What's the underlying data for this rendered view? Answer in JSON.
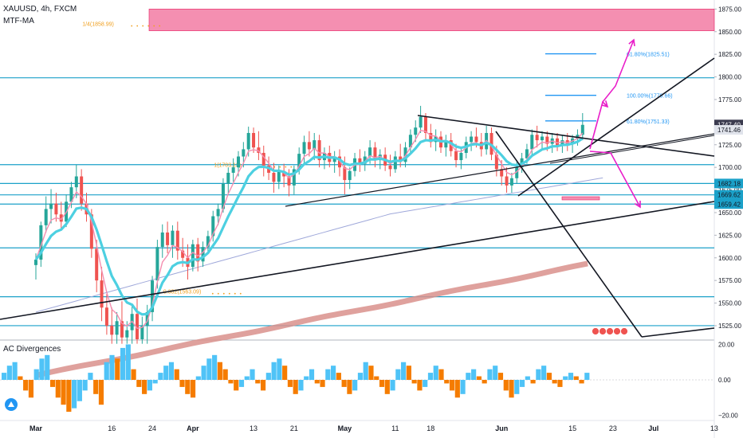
{
  "header": {
    "symbol_line": "XAUUSD, 4h, FXCM",
    "indicator_line": "MTF-MA",
    "pane2_title": "AC Divergences"
  },
  "colors": {
    "zone": "#f48fb1",
    "hline": "#1ba1c9",
    "fib": "#2196f3",
    "arrow": "#e91ec9",
    "trend": "#131722",
    "ma_fast": "#4dd0e1",
    "ma_pink": "#f48fb1",
    "ma_slow": "#9fa8da",
    "ma_long": "#d9908c",
    "bull": "#26a69a",
    "bear": "#ef5350",
    "ac_up": "#4fc3f7",
    "ac_down": "#f57c00"
  },
  "chart_data": {
    "type": "candlestick",
    "xaxis": {
      "tick_labels": [
        "Mar",
        "16",
        "24",
        "Apr",
        "13",
        "21",
        "May",
        "11",
        "18",
        "Jun",
        "15",
        "23",
        "Jul",
        "13"
      ],
      "tick_days": [
        0,
        15,
        23,
        31,
        43,
        51,
        61,
        71,
        78,
        92,
        106,
        114,
        122,
        134
      ]
    },
    "yaxis": {
      "tick_labels": [
        "1875.00",
        "1850.00",
        "1825.00",
        "1800.00",
        "1775.00",
        "1750.00",
        "1725.00",
        "1700.00",
        "1675.00",
        "1650.00",
        "1625.00",
        "1600.00",
        "1575.00",
        "1550.00",
        "1525.00"
      ],
      "range": [
        1510,
        1885
      ]
    },
    "price_labels": [
      {
        "text": "1747.40",
        "value": 1747.4,
        "bg": "#3b3b4f",
        "fg": "#ffffff"
      },
      {
        "text": "1741.46",
        "value": 1741.46,
        "bg": "#e0e3eb",
        "fg": "#131722"
      },
      {
        "text": "1682.18",
        "value": 1682.18,
        "bg": "#1ba1c9",
        "fg": "#131722"
      },
      {
        "text": "1669.62",
        "value": 1669.62,
        "bg": "#1ba1c9",
        "fg": "#131722"
      },
      {
        "text": "1659.42",
        "value": 1659.42,
        "bg": "#1ba1c9",
        "fg": "#131722"
      }
    ],
    "supply_zone": {
      "top": 1875,
      "bottom": 1851
    },
    "horizontal_levels": [
      1799,
      1703,
      1682.18,
      1669.62,
      1659.42,
      1611,
      1557,
      1525
    ],
    "fib_levels": [
      {
        "label": "61.80%(1825.51)",
        "value": 1825.51
      },
      {
        "label": "100.00%(1779.66)",
        "value": 1779.66
      },
      {
        "label": "61.80%(1751.33)",
        "value": 1751.33
      }
    ],
    "annotations": [
      {
        "text": "1/4(1858.99)",
        "value": 1858.99,
        "day": 12
      },
      {
        "text": "1(1703.13)",
        "value": 1703.13,
        "day": 38
      },
      {
        "text": "0.382(1563.09)",
        "value": 1563.09,
        "day": 28
      }
    ],
    "candles": [
      {
        "day": 0,
        "o": 1592,
        "h": 1605,
        "l": 1576,
        "c": 1598
      },
      {
        "day": 1,
        "o": 1598,
        "h": 1640,
        "l": 1590,
        "c": 1636
      },
      {
        "day": 2,
        "o": 1636,
        "h": 1668,
        "l": 1628,
        "c": 1654
      },
      {
        "day": 3,
        "o": 1654,
        "h": 1676,
        "l": 1638,
        "c": 1660
      },
      {
        "day": 4,
        "o": 1660,
        "h": 1672,
        "l": 1640,
        "c": 1648
      },
      {
        "day": 5,
        "o": 1648,
        "h": 1662,
        "l": 1630,
        "c": 1640
      },
      {
        "day": 6,
        "o": 1640,
        "h": 1670,
        "l": 1634,
        "c": 1662
      },
      {
        "day": 7,
        "o": 1662,
        "h": 1684,
        "l": 1655,
        "c": 1678
      },
      {
        "day": 8,
        "o": 1678,
        "h": 1703,
        "l": 1666,
        "c": 1690
      },
      {
        "day": 9,
        "o": 1690,
        "h": 1698,
        "l": 1652,
        "c": 1660
      },
      {
        "day": 10,
        "o": 1660,
        "h": 1672,
        "l": 1640,
        "c": 1648
      },
      {
        "day": 11,
        "o": 1648,
        "h": 1654,
        "l": 1600,
        "c": 1610
      },
      {
        "day": 12,
        "o": 1610,
        "h": 1620,
        "l": 1562,
        "c": 1575
      },
      {
        "day": 13,
        "o": 1575,
        "h": 1590,
        "l": 1530,
        "c": 1545
      },
      {
        "day": 14,
        "o": 1545,
        "h": 1560,
        "l": 1515,
        "c": 1525
      },
      {
        "day": 15,
        "o": 1525,
        "h": 1545,
        "l": 1505,
        "c": 1515
      },
      {
        "day": 16,
        "o": 1515,
        "h": 1540,
        "l": 1505,
        "c": 1530
      },
      {
        "day": 17,
        "o": 1530,
        "h": 1552,
        "l": 1505,
        "c": 1512
      },
      {
        "day": 18,
        "o": 1512,
        "h": 1530,
        "l": 1505,
        "c": 1520
      },
      {
        "day": 19,
        "o": 1520,
        "h": 1548,
        "l": 1505,
        "c": 1538
      },
      {
        "day": 20,
        "o": 1538,
        "h": 1555,
        "l": 1505,
        "c": 1510
      },
      {
        "day": 21,
        "o": 1510,
        "h": 1535,
        "l": 1505,
        "c": 1525
      },
      {
        "day": 22,
        "o": 1525,
        "h": 1548,
        "l": 1505,
        "c": 1540
      },
      {
        "day": 23,
        "o": 1540,
        "h": 1580,
        "l": 1530,
        "c": 1575
      },
      {
        "day": 24,
        "o": 1575,
        "h": 1620,
        "l": 1566,
        "c": 1612
      },
      {
        "day": 25,
        "o": 1612,
        "h": 1637,
        "l": 1600,
        "c": 1628
      },
      {
        "day": 26,
        "o": 1628,
        "h": 1640,
        "l": 1605,
        "c": 1614
      },
      {
        "day": 27,
        "o": 1614,
        "h": 1636,
        "l": 1600,
        "c": 1630
      },
      {
        "day": 28,
        "o": 1630,
        "h": 1640,
        "l": 1598,
        "c": 1608
      },
      {
        "day": 29,
        "o": 1608,
        "h": 1622,
        "l": 1590,
        "c": 1600
      },
      {
        "day": 30,
        "o": 1600,
        "h": 1615,
        "l": 1576,
        "c": 1590
      },
      {
        "day": 31,
        "o": 1590,
        "h": 1620,
        "l": 1585,
        "c": 1615
      },
      {
        "day": 32,
        "o": 1615,
        "h": 1622,
        "l": 1585,
        "c": 1596
      },
      {
        "day": 33,
        "o": 1596,
        "h": 1618,
        "l": 1590,
        "c": 1612
      },
      {
        "day": 34,
        "o": 1612,
        "h": 1630,
        "l": 1605,
        "c": 1624
      },
      {
        "day": 35,
        "o": 1624,
        "h": 1652,
        "l": 1618,
        "c": 1646
      },
      {
        "day": 36,
        "o": 1646,
        "h": 1660,
        "l": 1636,
        "c": 1654
      },
      {
        "day": 37,
        "o": 1654,
        "h": 1688,
        "l": 1650,
        "c": 1682
      },
      {
        "day": 38,
        "o": 1682,
        "h": 1700,
        "l": 1670,
        "c": 1694
      },
      {
        "day": 39,
        "o": 1694,
        "h": 1710,
        "l": 1684,
        "c": 1700
      },
      {
        "day": 40,
        "o": 1700,
        "h": 1718,
        "l": 1690,
        "c": 1712
      },
      {
        "day": 41,
        "o": 1712,
        "h": 1728,
        "l": 1700,
        "c": 1720
      },
      {
        "day": 42,
        "o": 1720,
        "h": 1745,
        "l": 1712,
        "c": 1738
      },
      {
        "day": 43,
        "o": 1738,
        "h": 1744,
        "l": 1716,
        "c": 1722
      },
      {
        "day": 44,
        "o": 1722,
        "h": 1740,
        "l": 1708,
        "c": 1716
      },
      {
        "day": 45,
        "o": 1716,
        "h": 1724,
        "l": 1690,
        "c": 1702
      },
      {
        "day": 46,
        "o": 1702,
        "h": 1712,
        "l": 1686,
        "c": 1694
      },
      {
        "day": 47,
        "o": 1694,
        "h": 1705,
        "l": 1672,
        "c": 1684
      },
      {
        "day": 48,
        "o": 1684,
        "h": 1702,
        "l": 1676,
        "c": 1696
      },
      {
        "day": 49,
        "o": 1696,
        "h": 1704,
        "l": 1678,
        "c": 1690
      },
      {
        "day": 50,
        "o": 1690,
        "h": 1698,
        "l": 1668,
        "c": 1680
      },
      {
        "day": 51,
        "o": 1680,
        "h": 1702,
        "l": 1670,
        "c": 1698
      },
      {
        "day": 52,
        "o": 1698,
        "h": 1722,
        "l": 1692,
        "c": 1715
      },
      {
        "day": 53,
        "o": 1715,
        "h": 1735,
        "l": 1705,
        "c": 1728
      },
      {
        "day": 54,
        "o": 1728,
        "h": 1740,
        "l": 1712,
        "c": 1720
      },
      {
        "day": 55,
        "o": 1720,
        "h": 1738,
        "l": 1708,
        "c": 1730
      },
      {
        "day": 56,
        "o": 1730,
        "h": 1736,
        "l": 1700,
        "c": 1708
      },
      {
        "day": 57,
        "o": 1708,
        "h": 1722,
        "l": 1698,
        "c": 1716
      },
      {
        "day": 58,
        "o": 1716,
        "h": 1724,
        "l": 1700,
        "c": 1706
      },
      {
        "day": 59,
        "o": 1706,
        "h": 1718,
        "l": 1694,
        "c": 1712
      },
      {
        "day": 60,
        "o": 1712,
        "h": 1720,
        "l": 1690,
        "c": 1700
      },
      {
        "day": 61,
        "o": 1700,
        "h": 1712,
        "l": 1670,
        "c": 1686
      },
      {
        "day": 62,
        "o": 1686,
        "h": 1700,
        "l": 1676,
        "c": 1696
      },
      {
        "day": 63,
        "o": 1696,
        "h": 1716,
        "l": 1690,
        "c": 1710
      },
      {
        "day": 64,
        "o": 1710,
        "h": 1720,
        "l": 1695,
        "c": 1704
      },
      {
        "day": 65,
        "o": 1704,
        "h": 1718,
        "l": 1696,
        "c": 1712
      },
      {
        "day": 66,
        "o": 1712,
        "h": 1730,
        "l": 1704,
        "c": 1722
      },
      {
        "day": 67,
        "o": 1722,
        "h": 1728,
        "l": 1700,
        "c": 1708
      },
      {
        "day": 68,
        "o": 1708,
        "h": 1720,
        "l": 1698,
        "c": 1714
      },
      {
        "day": 69,
        "o": 1714,
        "h": 1722,
        "l": 1696,
        "c": 1702
      },
      {
        "day": 70,
        "o": 1702,
        "h": 1714,
        "l": 1690,
        "c": 1698
      },
      {
        "day": 71,
        "o": 1698,
        "h": 1718,
        "l": 1694,
        "c": 1712
      },
      {
        "day": 72,
        "o": 1712,
        "h": 1726,
        "l": 1700,
        "c": 1706
      },
      {
        "day": 73,
        "o": 1706,
        "h": 1728,
        "l": 1700,
        "c": 1722
      },
      {
        "day": 74,
        "o": 1722,
        "h": 1742,
        "l": 1716,
        "c": 1736
      },
      {
        "day": 75,
        "o": 1736,
        "h": 1752,
        "l": 1728,
        "c": 1744
      },
      {
        "day": 76,
        "o": 1744,
        "h": 1768,
        "l": 1738,
        "c": 1756
      },
      {
        "day": 77,
        "o": 1756,
        "h": 1760,
        "l": 1730,
        "c": 1738
      },
      {
        "day": 78,
        "o": 1738,
        "h": 1748,
        "l": 1722,
        "c": 1728
      },
      {
        "day": 79,
        "o": 1728,
        "h": 1742,
        "l": 1718,
        "c": 1734
      },
      {
        "day": 80,
        "o": 1734,
        "h": 1740,
        "l": 1716,
        "c": 1722
      },
      {
        "day": 81,
        "o": 1722,
        "h": 1736,
        "l": 1712,
        "c": 1730
      },
      {
        "day": 82,
        "o": 1730,
        "h": 1738,
        "l": 1712,
        "c": 1718
      },
      {
        "day": 83,
        "o": 1718,
        "h": 1726,
        "l": 1700,
        "c": 1708
      },
      {
        "day": 84,
        "o": 1708,
        "h": 1722,
        "l": 1698,
        "c": 1716
      },
      {
        "day": 85,
        "o": 1716,
        "h": 1734,
        "l": 1710,
        "c": 1728
      },
      {
        "day": 86,
        "o": 1728,
        "h": 1740,
        "l": 1718,
        "c": 1734
      },
      {
        "day": 87,
        "o": 1734,
        "h": 1744,
        "l": 1722,
        "c": 1728
      },
      {
        "day": 88,
        "o": 1728,
        "h": 1738,
        "l": 1712,
        "c": 1720
      },
      {
        "day": 89,
        "o": 1720,
        "h": 1746,
        "l": 1714,
        "c": 1738
      },
      {
        "day": 90,
        "o": 1738,
        "h": 1744,
        "l": 1708,
        "c": 1714
      },
      {
        "day": 91,
        "o": 1714,
        "h": 1724,
        "l": 1690,
        "c": 1698
      },
      {
        "day": 92,
        "o": 1698,
        "h": 1708,
        "l": 1680,
        "c": 1690
      },
      {
        "day": 93,
        "o": 1690,
        "h": 1700,
        "l": 1672,
        "c": 1680
      },
      {
        "day": 94,
        "o": 1680,
        "h": 1694,
        "l": 1672,
        "c": 1688
      },
      {
        "day": 95,
        "o": 1688,
        "h": 1708,
        "l": 1682,
        "c": 1700
      },
      {
        "day": 96,
        "o": 1700,
        "h": 1716,
        "l": 1694,
        "c": 1710
      },
      {
        "day": 97,
        "o": 1710,
        "h": 1726,
        "l": 1704,
        "c": 1720
      },
      {
        "day": 98,
        "o": 1720,
        "h": 1742,
        "l": 1714,
        "c": 1736
      },
      {
        "day": 99,
        "o": 1736,
        "h": 1746,
        "l": 1722,
        "c": 1730
      },
      {
        "day": 100,
        "o": 1730,
        "h": 1740,
        "l": 1720,
        "c": 1734
      },
      {
        "day": 101,
        "o": 1734,
        "h": 1740,
        "l": 1718,
        "c": 1726
      },
      {
        "day": 102,
        "o": 1726,
        "h": 1738,
        "l": 1716,
        "c": 1732
      },
      {
        "day": 103,
        "o": 1732,
        "h": 1738,
        "l": 1718,
        "c": 1724
      },
      {
        "day": 104,
        "o": 1724,
        "h": 1736,
        "l": 1716,
        "c": 1730
      },
      {
        "day": 105,
        "o": 1730,
        "h": 1738,
        "l": 1718,
        "c": 1726
      },
      {
        "day": 106,
        "o": 1726,
        "h": 1736,
        "l": 1716,
        "c": 1732
      },
      {
        "day": 107,
        "o": 1732,
        "h": 1742,
        "l": 1724,
        "c": 1736
      },
      {
        "day": 108,
        "o": 1736,
        "h": 1760,
        "l": 1730,
        "c": 1747
      }
    ],
    "ac_histogram": [
      4,
      8,
      10,
      2,
      -6,
      -10,
      6,
      12,
      14,
      -4,
      -10,
      -14,
      -18,
      -16,
      -12,
      -6,
      4,
      -8,
      -14,
      10,
      14,
      12,
      18,
      20,
      6,
      -4,
      -8,
      -6,
      -2,
      4,
      8,
      10,
      6,
      -4,
      -8,
      -10,
      2,
      8,
      12,
      14,
      10,
      6,
      -2,
      -6,
      -4,
      2,
      6,
      -2,
      -6,
      4,
      10,
      12,
      8,
      -4,
      -8,
      -6,
      2,
      6,
      -2,
      -4,
      6,
      8,
      4,
      -4,
      -8,
      -6,
      4,
      10,
      8,
      2,
      -4,
      -8,
      -6,
      6,
      10,
      8,
      -2,
      -6,
      -4,
      4,
      8,
      6,
      -2,
      -6,
      -10,
      -8,
      4,
      6,
      2,
      -2,
      6,
      8,
      4,
      -6,
      -10,
      -8,
      -4,
      2,
      -2,
      6,
      8,
      4,
      -2,
      -4,
      2,
      4,
      2,
      -2,
      4
    ],
    "ac_axis": {
      "tick_labels": [
        "20.00",
        "0.00",
        "−20.00"
      ],
      "range": [
        -22,
        22
      ]
    }
  }
}
